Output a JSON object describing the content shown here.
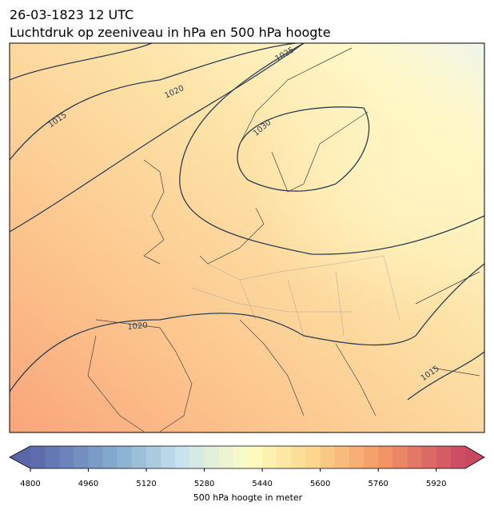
{
  "header": {
    "date": "26-03-1823 12 UTC",
    "title": "Luchtdruk op zeeniveau in hPa en 500 hPa hoogte"
  },
  "map": {
    "isobar_labels": [
      1015,
      1020,
      1025,
      1030,
      1020,
      1015
    ]
  },
  "colorbar": {
    "lim": [
      4800,
      6000
    ],
    "ticks": [
      4800,
      4960,
      5120,
      5280,
      5440,
      5600,
      5760,
      5920
    ],
    "label": "500 hPa hoogte in meter"
  }
}
